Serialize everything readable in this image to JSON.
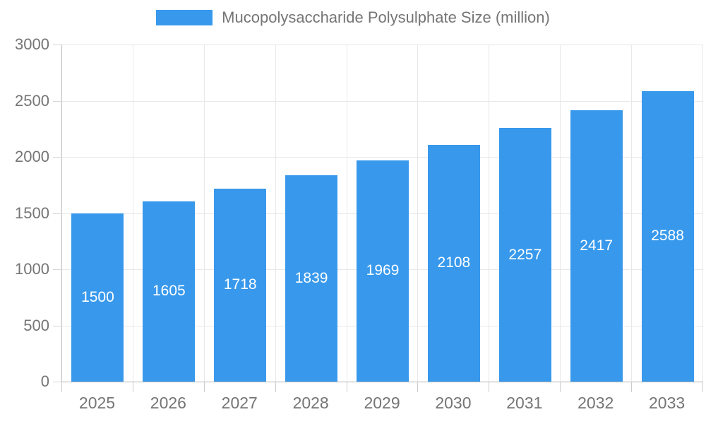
{
  "legend": {
    "label": "Mucopolysaccharide Polysulphate Size (million)",
    "swatch_color": "#3899ec"
  },
  "chart_data": {
    "type": "bar",
    "title": "",
    "xlabel": "",
    "ylabel": "",
    "categories": [
      "2025",
      "2026",
      "2027",
      "2028",
      "2029",
      "2030",
      "2031",
      "2032",
      "2033"
    ],
    "series": [
      {
        "name": "Mucopolysaccharide Polysulphate Size (million)",
        "values": [
          1500,
          1605,
          1718,
          1839,
          1969,
          2108,
          2257,
          2417,
          2588
        ]
      }
    ],
    "value_labels_shown": true,
    "ylim": [
      0,
      3000
    ],
    "yticks": [
      0,
      500,
      1000,
      1500,
      2000,
      2500,
      3000
    ],
    "grid": true,
    "legend_position": "top-center",
    "colors": {
      "bar": "#3899ec",
      "value_label": "#ffffff",
      "axis_label": "#757575",
      "gridline": "#e8e8e8",
      "axis_line": "#bdbdbd",
      "tick": "#d6d6d6"
    }
  }
}
